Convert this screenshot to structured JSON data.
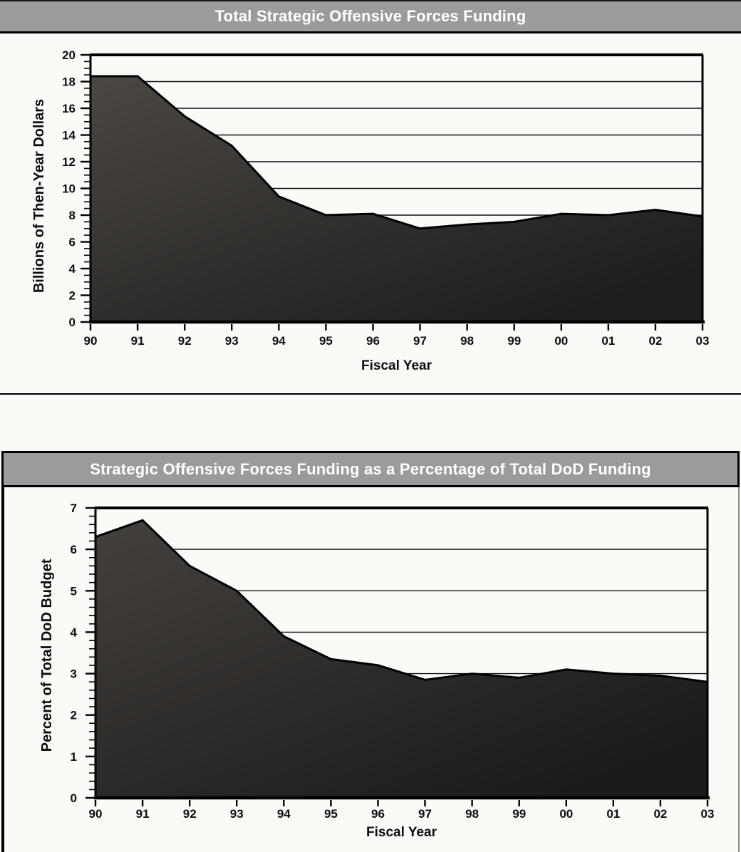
{
  "colors": {
    "page_bg": "#fbfaf7",
    "title_bar_bg": "#9b9b9b",
    "title_bar_text": "#ffffff",
    "axis_line": "#000000",
    "text": "#0d0d0d"
  },
  "chart_data": [
    {
      "type": "area",
      "title": "Total Strategic Offensive Forces Funding",
      "xlabel": "Fiscal Year",
      "ylabel": "Billions of Then-Year Dollars",
      "categories": [
        "90",
        "91",
        "92",
        "93",
        "94",
        "95",
        "96",
        "97",
        "98",
        "99",
        "00",
        "01",
        "02",
        "03"
      ],
      "values": [
        18.4,
        18.4,
        15.4,
        13.2,
        9.4,
        8.0,
        8.1,
        7.0,
        7.3,
        7.5,
        8.1,
        8.0,
        8.4,
        7.9
      ],
      "ylim": [
        0,
        20
      ],
      "y_major_step": 2,
      "y_minor_step": 0.5,
      "y_tick_labels": [
        "0",
        "2",
        "4",
        "6",
        "8",
        "10",
        "12",
        "14",
        "16",
        "18",
        "20"
      ],
      "grid": true,
      "legend": "none",
      "area_fill_light": "#4b4743",
      "area_fill_dark": "#1f1e1d"
    },
    {
      "type": "area",
      "title": "Strategic Offensive Forces Funding as a Percentage of Total DoD Funding",
      "xlabel": "Fiscal Year",
      "ylabel": "Percent of Total DoD Budget",
      "categories": [
        "90",
        "91",
        "92",
        "93",
        "94",
        "95",
        "96",
        "97",
        "98",
        "99",
        "00",
        "01",
        "02",
        "03"
      ],
      "values": [
        6.3,
        6.7,
        5.6,
        5.0,
        3.9,
        3.35,
        3.2,
        2.85,
        3.0,
        2.9,
        3.1,
        3.0,
        2.95,
        2.8
      ],
      "ylim": [
        0,
        7
      ],
      "y_major_step": 1,
      "y_minor_step": 0.2,
      "y_tick_labels": [
        "0",
        "1",
        "2",
        "3",
        "4",
        "5",
        "6",
        "7"
      ],
      "grid": true,
      "legend": "none",
      "area_fill_light": "#44403d",
      "area_fill_dark": "#1c1b1a"
    }
  ]
}
